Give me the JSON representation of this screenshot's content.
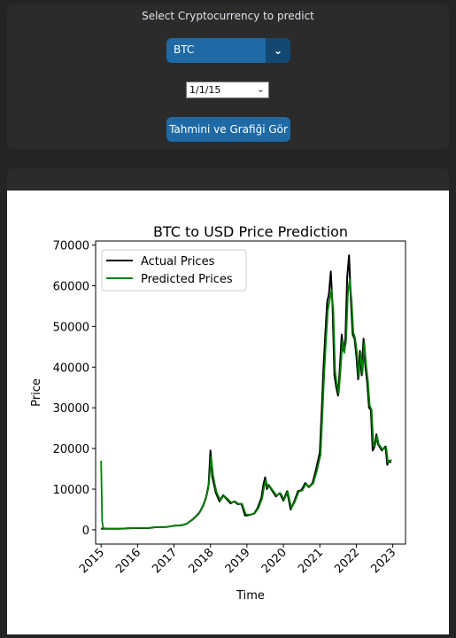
{
  "header": {
    "prompt": "Select Cryptocurrency to predict",
    "crypto_select": {
      "value": "BTC"
    },
    "date_picker": {
      "value": "1/1/15"
    },
    "submit_button": {
      "label": "Tahmini ve Grafiği Gör"
    }
  },
  "colors": {
    "accent": "#1f6aa5",
    "accent_dark": "#144870",
    "actual_line": "#000000",
    "predicted_line": "#008000"
  },
  "chart_data": {
    "type": "line",
    "title": "BTC to USD Price Prediction",
    "xlabel": "Time",
    "ylabel": "Price",
    "xlim": [
      2014.85,
      2023.35
    ],
    "ylim": [
      -3500,
      71000
    ],
    "xticks": [
      2015,
      2016,
      2017,
      2018,
      2019,
      2020,
      2021,
      2022,
      2023
    ],
    "yticks": [
      0,
      10000,
      20000,
      30000,
      40000,
      50000,
      60000,
      70000
    ],
    "legend_position": "top-left",
    "grid": false,
    "series": [
      {
        "name": "Actual Prices",
        "color": "#000000",
        "x": [
          2015.0,
          2015.2,
          2015.5,
          2015.8,
          2016.0,
          2016.3,
          2016.5,
          2016.8,
          2017.0,
          2017.2,
          2017.35,
          2017.5,
          2017.6,
          2017.7,
          2017.8,
          2017.88,
          2017.95,
          2018.0,
          2018.05,
          2018.1,
          2018.15,
          2018.25,
          2018.35,
          2018.45,
          2018.55,
          2018.65,
          2018.75,
          2018.85,
          2018.95,
          2019.05,
          2019.2,
          2019.3,
          2019.4,
          2019.45,
          2019.5,
          2019.55,
          2019.6,
          2019.7,
          2019.8,
          2019.9,
          2020.0,
          2020.1,
          2020.2,
          2020.3,
          2020.4,
          2020.5,
          2020.6,
          2020.7,
          2020.8,
          2020.9,
          2021.0,
          2021.05,
          2021.1,
          2021.15,
          2021.2,
          2021.25,
          2021.3,
          2021.35,
          2021.4,
          2021.45,
          2021.5,
          2021.55,
          2021.6,
          2021.65,
          2021.7,
          2021.75,
          2021.8,
          2021.85,
          2021.9,
          2021.95,
          2022.0,
          2022.05,
          2022.1,
          2022.15,
          2022.2,
          2022.25,
          2022.3,
          2022.35,
          2022.4,
          2022.45,
          2022.5,
          2022.55,
          2022.6,
          2022.7,
          2022.8,
          2022.85,
          2022.9,
          2022.95
        ],
        "y": [
          300,
          250,
          260,
          400,
          430,
          430,
          650,
          700,
          1000,
          1100,
          1500,
          2500,
          3300,
          4300,
          6000,
          8000,
          11000,
          19500,
          13000,
          11000,
          9000,
          7000,
          8500,
          7500,
          6500,
          7000,
          6300,
          6400,
          3500,
          3600,
          4000,
          5500,
          8000,
          11000,
          12900,
          10000,
          11000,
          9500,
          8200,
          9000,
          7200,
          9500,
          5000,
          7000,
          9500,
          9800,
          11500,
          10500,
          11500,
          15000,
          19000,
          29000,
          40000,
          48000,
          56000,
          58000,
          63500,
          55000,
          38000,
          35000,
          33000,
          40000,
          48000,
          44000,
          47000,
          62000,
          67500,
          57000,
          48000,
          47000,
          43000,
          37000,
          44000,
          38000,
          47000,
          40000,
          36000,
          30000,
          29500,
          19500,
          20500,
          23500,
          21000,
          19500,
          20500,
          16000,
          17000,
          16500
        ]
      },
      {
        "name": "Predicted Prices",
        "color": "#008000",
        "x": [
          2015.0,
          2015.03,
          2015.06,
          2015.2,
          2015.5,
          2015.8,
          2016.0,
          2016.3,
          2016.5,
          2016.8,
          2017.0,
          2017.2,
          2017.35,
          2017.5,
          2017.6,
          2017.7,
          2017.8,
          2017.88,
          2017.95,
          2018.02,
          2018.07,
          2018.12,
          2018.17,
          2018.27,
          2018.37,
          2018.47,
          2018.57,
          2018.67,
          2018.77,
          2018.87,
          2018.97,
          2019.07,
          2019.22,
          2019.32,
          2019.42,
          2019.47,
          2019.52,
          2019.57,
          2019.62,
          2019.72,
          2019.82,
          2019.92,
          2020.02,
          2020.12,
          2020.22,
          2020.32,
          2020.42,
          2020.52,
          2020.62,
          2020.72,
          2020.82,
          2020.92,
          2021.02,
          2021.07,
          2021.12,
          2021.17,
          2021.22,
          2021.27,
          2021.32,
          2021.37,
          2021.42,
          2021.47,
          2021.52,
          2021.57,
          2021.62,
          2021.67,
          2021.72,
          2021.77,
          2021.82,
          2021.87,
          2021.92,
          2021.97,
          2022.02,
          2022.07,
          2022.12,
          2022.17,
          2022.22,
          2022.27,
          2022.32,
          2022.37,
          2022.42,
          2022.47,
          2022.52,
          2022.57,
          2022.62,
          2022.72,
          2022.82,
          2022.87,
          2022.92,
          2022.97
        ],
        "y": [
          17000,
          2000,
          400,
          300,
          280,
          420,
          450,
          450,
          660,
          720,
          1000,
          1150,
          1500,
          2400,
          3200,
          4200,
          5800,
          7800,
          10500,
          18000,
          13500,
          11200,
          9200,
          7300,
          8400,
          7600,
          6700,
          7000,
          6400,
          6400,
          3800,
          3700,
          4100,
          5400,
          7800,
          10500,
          12300,
          10200,
          10800,
          9600,
          8400,
          9000,
          7400,
          9400,
          5300,
          7000,
          9400,
          9700,
          11300,
          10600,
          11400,
          14500,
          18500,
          28000,
          38500,
          46500,
          54000,
          56500,
          59000,
          54000,
          39000,
          35500,
          33500,
          39500,
          46500,
          43500,
          46500,
          58000,
          61500,
          56500,
          48500,
          47000,
          43500,
          37500,
          43500,
          38500,
          46000,
          40500,
          36500,
          30500,
          29500,
          20500,
          20800,
          23000,
          21000,
          19700,
          20300,
          16500,
          17000,
          17200
        ]
      }
    ]
  }
}
